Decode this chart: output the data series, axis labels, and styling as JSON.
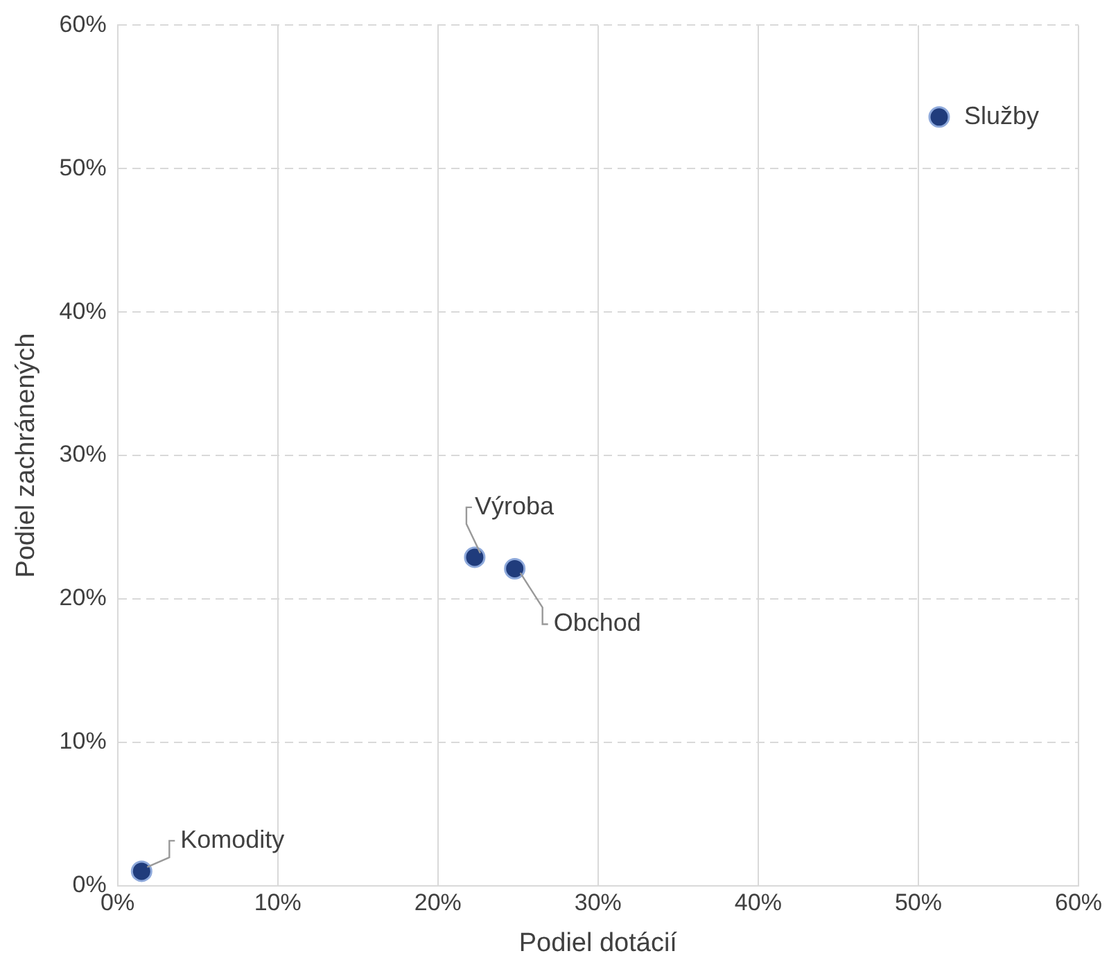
{
  "chart_data": {
    "type": "scatter",
    "xlabel": "Podiel dotácií",
    "ylabel": "Podiel zachránených",
    "x": [
      51.3,
      22.3,
      24.8,
      1.5
    ],
    "series": [
      {
        "color": "#203c7c",
        "values": [
          53.6,
          22.9,
          22.1,
          1.0
        ]
      }
    ],
    "annotations": [
      {
        "text": "Služby",
        "x": 51.3,
        "y": 53.6
      },
      {
        "text": "Výroba",
        "x": 22.3,
        "y": 22.9
      },
      {
        "text": "Obchod",
        "x": 24.8,
        "y": 22.1
      },
      {
        "text": "Komodity",
        "x": 1.5,
        "y": 1.0
      }
    ],
    "xlim": [
      0,
      60
    ],
    "ylim": [
      0,
      60
    ],
    "xticks": [
      {
        "value": 0,
        "label": "0%"
      },
      {
        "value": 10,
        "label": "10%"
      },
      {
        "value": 20,
        "label": "20%"
      },
      {
        "value": 30,
        "label": "30%"
      },
      {
        "value": 40,
        "label": "40%"
      },
      {
        "value": 50,
        "label": "50%"
      },
      {
        "value": 60,
        "label": "60%"
      }
    ],
    "yticks": [
      {
        "value": 0,
        "label": "0%"
      },
      {
        "value": 10,
        "label": "10%"
      },
      {
        "value": 20,
        "label": "20%"
      },
      {
        "value": 30,
        "label": "30%"
      },
      {
        "value": 40,
        "label": "40%"
      },
      {
        "value": 50,
        "label": "50%"
      },
      {
        "value": 60,
        "label": "60%"
      }
    ],
    "grid": true,
    "marker": "circle",
    "legend": false
  }
}
